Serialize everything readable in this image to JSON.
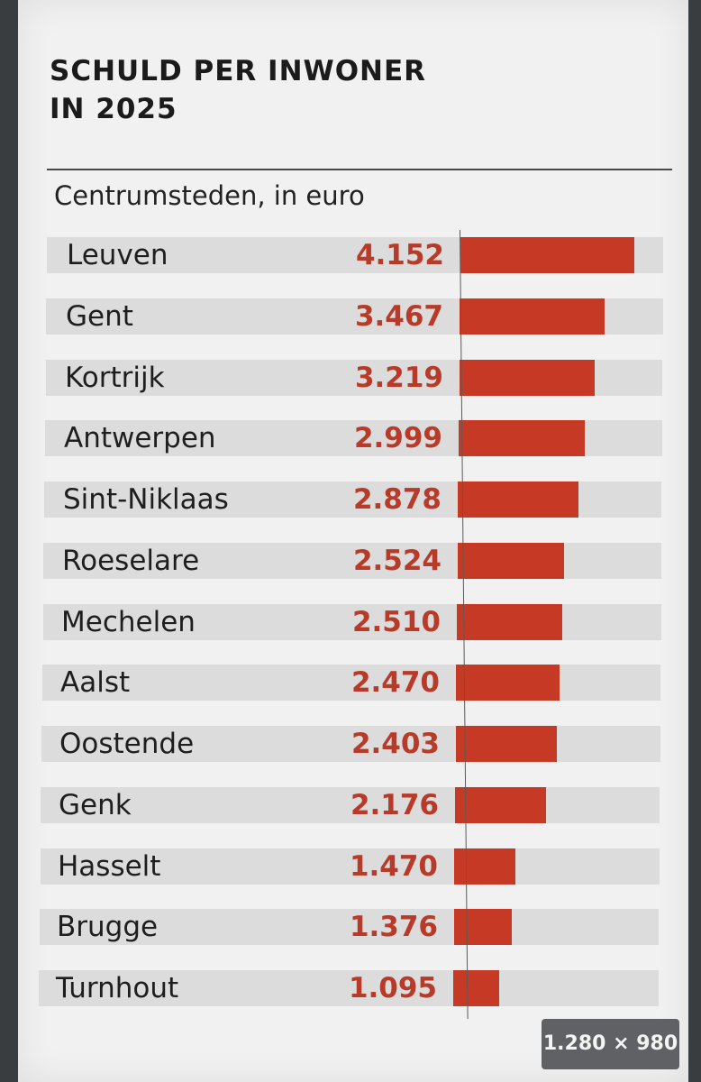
{
  "title_line1": "SCHULD PER INWONER",
  "title_line2": "IN 2025",
  "subtitle": "Centrumsteden, in euro",
  "image_size_badge": "1.280 × 980",
  "colors": {
    "bar": "#c63a25",
    "value_text": "#b83a28",
    "row_background": "#dcdcdc",
    "card_background": "#f1f1f1"
  },
  "chart_data": {
    "type": "bar",
    "orientation": "horizontal",
    "title": "SCHULD PER INWONER IN 2025",
    "subtitle": "Centrumsteden, in euro",
    "categories": [
      "Leuven",
      "Gent",
      "Kortrijk",
      "Antwerpen",
      "Sint-Niklaas",
      "Roeselare",
      "Mechelen",
      "Aalst",
      "Oostende",
      "Genk",
      "Hasselt",
      "Brugge",
      "Turnhout"
    ],
    "values": [
      4152,
      3467,
      3219,
      2999,
      2878,
      2524,
      2510,
      2470,
      2403,
      2176,
      1470,
      1376,
      1095
    ],
    "value_labels": [
      "4.152",
      "3.467",
      "3.219",
      "2.999",
      "2.878",
      "2.524",
      "2.510",
      "2.470",
      "2.403",
      "2.176",
      "1.470",
      "1.376",
      "1.095"
    ],
    "xlim": [
      0,
      5000
    ],
    "grid": false,
    "legend": "none"
  }
}
